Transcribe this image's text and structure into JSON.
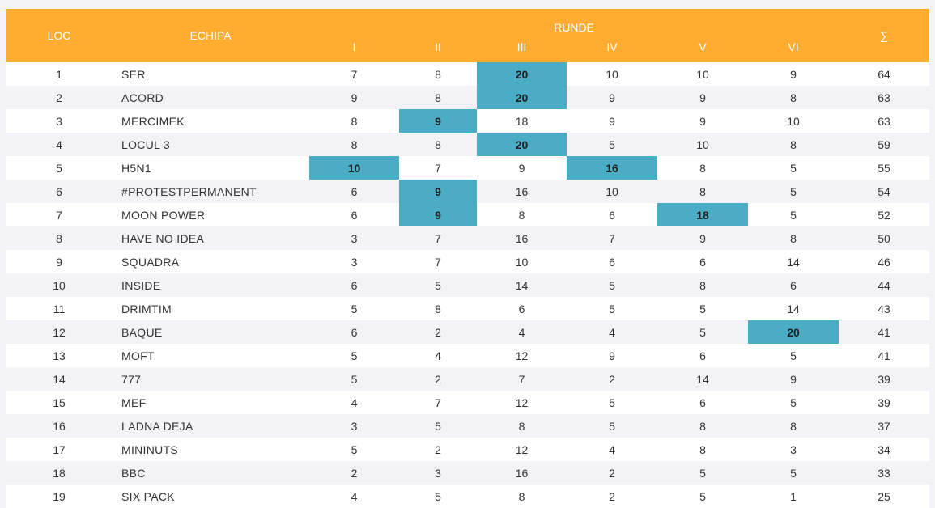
{
  "header": {
    "loc": "LOC",
    "team": "ECHIPA",
    "rounds_title": "RUNDE",
    "rounds": [
      "I",
      "II",
      "III",
      "IV",
      "V",
      "VI"
    ],
    "total": "∑"
  },
  "colors": {
    "header_bg": "#ffac31",
    "highlight": "#4aadc5",
    "row_alt": "#f3f3f7"
  },
  "rows": [
    {
      "loc": "1",
      "team": "SER",
      "scores": [
        "7",
        "8",
        "20",
        "10",
        "10",
        "9"
      ],
      "total": "64",
      "best": [
        2
      ]
    },
    {
      "loc": "2",
      "team": "ACORD",
      "scores": [
        "9",
        "8",
        "20",
        "9",
        "9",
        "8"
      ],
      "total": "63",
      "best": [
        2
      ]
    },
    {
      "loc": "3",
      "team": "MERCIMEK",
      "scores": [
        "8",
        "9",
        "18",
        "9",
        "9",
        "10"
      ],
      "total": "63",
      "best": [
        1
      ]
    },
    {
      "loc": "4",
      "team": "LOCUL 3",
      "scores": [
        "8",
        "8",
        "20",
        "5",
        "10",
        "8"
      ],
      "total": "59",
      "best": [
        2
      ]
    },
    {
      "loc": "5",
      "team": "H5N1",
      "scores": [
        "10",
        "7",
        "9",
        "16",
        "8",
        "5"
      ],
      "total": "55",
      "best": [
        0,
        3
      ]
    },
    {
      "loc": "6",
      "team": "#PROTESTPERMANENT",
      "scores": [
        "6",
        "9",
        "16",
        "10",
        "8",
        "5"
      ],
      "total": "54",
      "best": [
        1
      ]
    },
    {
      "loc": "7",
      "team": "MOON POWER",
      "scores": [
        "6",
        "9",
        "8",
        "6",
        "18",
        "5"
      ],
      "total": "52",
      "best": [
        1,
        4
      ]
    },
    {
      "loc": "8",
      "team": "HAVE NO IDEA",
      "scores": [
        "3",
        "7",
        "16",
        "7",
        "9",
        "8"
      ],
      "total": "50",
      "best": []
    },
    {
      "loc": "9",
      "team": "SQUADRA",
      "scores": [
        "3",
        "7",
        "10",
        "6",
        "6",
        "14"
      ],
      "total": "46",
      "best": []
    },
    {
      "loc": "10",
      "team": "INSIDE",
      "scores": [
        "6",
        "5",
        "14",
        "5",
        "8",
        "6"
      ],
      "total": "44",
      "best": []
    },
    {
      "loc": "11",
      "team": "DRIMTIM",
      "scores": [
        "5",
        "8",
        "6",
        "5",
        "5",
        "14"
      ],
      "total": "43",
      "best": []
    },
    {
      "loc": "12",
      "team": "BAQUE",
      "scores": [
        "6",
        "2",
        "4",
        "4",
        "5",
        "20"
      ],
      "total": "41",
      "best": [
        5
      ]
    },
    {
      "loc": "13",
      "team": "MOFT",
      "scores": [
        "5",
        "4",
        "12",
        "9",
        "6",
        "5"
      ],
      "total": "41",
      "best": []
    },
    {
      "loc": "14",
      "team": "777",
      "scores": [
        "5",
        "2",
        "7",
        "2",
        "14",
        "9"
      ],
      "total": "39",
      "best": []
    },
    {
      "loc": "15",
      "team": "MEF",
      "scores": [
        "4",
        "7",
        "12",
        "5",
        "6",
        "5"
      ],
      "total": "39",
      "best": []
    },
    {
      "loc": "16",
      "team": "LADNA DEJA",
      "scores": [
        "3",
        "5",
        "8",
        "5",
        "8",
        "8"
      ],
      "total": "37",
      "best": []
    },
    {
      "loc": "17",
      "team": "MININUTS",
      "scores": [
        "5",
        "2",
        "12",
        "4",
        "8",
        "3"
      ],
      "total": "34",
      "best": []
    },
    {
      "loc": "18",
      "team": "BBC",
      "scores": [
        "2",
        "3",
        "16",
        "2",
        "5",
        "5"
      ],
      "total": "33",
      "best": []
    },
    {
      "loc": "19",
      "team": "SIX PACK",
      "scores": [
        "4",
        "5",
        "8",
        "2",
        "5",
        "1"
      ],
      "total": "25",
      "best": []
    }
  ]
}
